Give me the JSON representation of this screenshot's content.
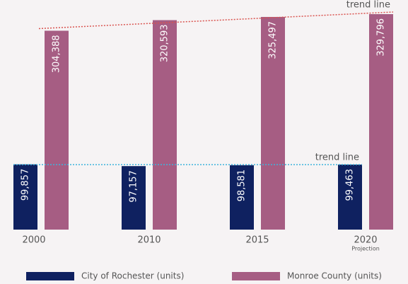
{
  "chart_data": {
    "type": "bar",
    "categories": [
      "2000",
      "2010",
      "2015",
      "2020"
    ],
    "category_notes": [
      null,
      null,
      null,
      "Projection"
    ],
    "series": [
      {
        "name": "City of Rochester (units)",
        "color": "#0f2160",
        "values": [
          99857,
          97157,
          98581,
          99463
        ],
        "value_labels": [
          "99,857",
          "97,157",
          "98,581",
          "99,463"
        ]
      },
      {
        "name": "Monroe County (units)",
        "color": "#a65d83",
        "values": [
          304388,
          320593,
          325497,
          329796
        ],
        "value_labels": [
          "304,388",
          "320,593",
          "325,497",
          "329,796"
        ]
      }
    ],
    "trend_lines": [
      {
        "label": "trend line",
        "color": "#3fb4dc"
      },
      {
        "label": "trend line",
        "color": "#d9534f"
      }
    ],
    "legend": "bottom"
  }
}
